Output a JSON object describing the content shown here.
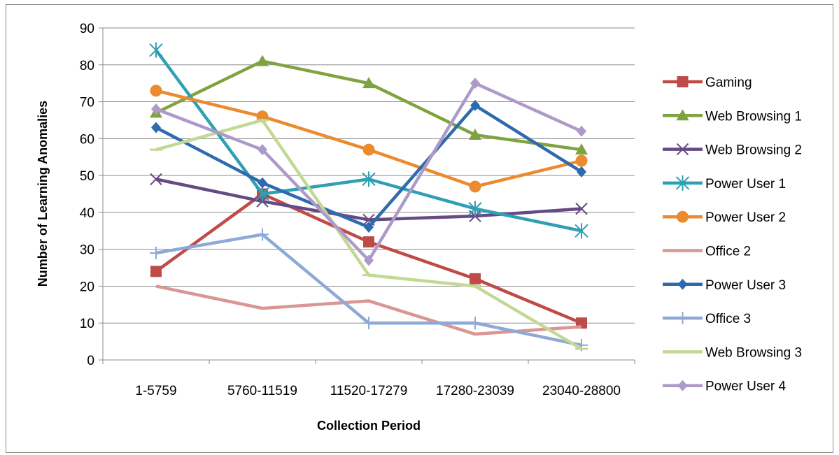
{
  "chart_data": {
    "type": "line",
    "title": "",
    "xlabel": "Collection Period",
    "ylabel": "Number of Learning Anomalies",
    "categories": [
      "1-5759",
      "5760-11519",
      "11520-17279",
      "17280-23039",
      "23040-28800"
    ],
    "ylim": [
      0,
      90
    ],
    "yticks": [
      0,
      10,
      20,
      30,
      40,
      50,
      60,
      70,
      80,
      90
    ],
    "grid": "horizontal",
    "legend_position": "right",
    "series": [
      {
        "name": "Gaming",
        "values": [
          24,
          45,
          32,
          22,
          10
        ],
        "color": "#be4b48",
        "marker": "square"
      },
      {
        "name": "Web Browsing 1",
        "values": [
          67,
          81,
          75,
          61,
          57
        ],
        "color": "#7ea33f",
        "marker": "triangle"
      },
      {
        "name": "Web Browsing 2",
        "values": [
          49,
          43,
          38,
          39,
          41
        ],
        "color": "#664a85",
        "marker": "x"
      },
      {
        "name": "Power User 1",
        "values": [
          84,
          45,
          49,
          41,
          35
        ],
        "color": "#2f9fb4",
        "marker": "asterisk"
      },
      {
        "name": "Power User 2",
        "values": [
          73,
          66,
          57,
          47,
          54
        ],
        "color": "#ec8a2f",
        "marker": "circle"
      },
      {
        "name": "Office 2",
        "values": [
          20,
          14,
          16,
          7,
          9
        ],
        "color": "#d99694",
        "marker": "none"
      },
      {
        "name": "Power User 3",
        "values": [
          63,
          48,
          36,
          69,
          51
        ],
        "color": "#2e6aae",
        "marker": "diamond"
      },
      {
        "name": "Office 3",
        "values": [
          29,
          34,
          10,
          10,
          4
        ],
        "color": "#8ea9d6",
        "marker": "plus"
      },
      {
        "name": "Web Browsing 3",
        "values": [
          57,
          65,
          23,
          20,
          3
        ],
        "color": "#c3d894",
        "marker": "dash"
      },
      {
        "name": "Power User 4",
        "values": [
          68,
          57,
          27,
          75,
          62
        ],
        "color": "#ad9ac8",
        "marker": "diamond"
      }
    ]
  }
}
